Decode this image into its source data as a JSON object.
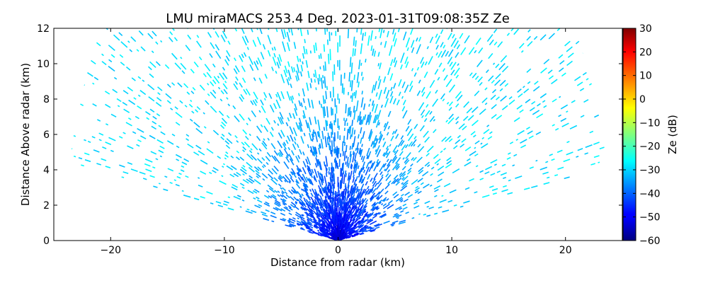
{
  "chart_data": {
    "type": "heatmap",
    "subtype": "radar-rhi-scan",
    "title": "LMU miraMACS 253.4 Deg. 2023-01-31T09:08:35Z  Ze",
    "xlabel": "Distance from radar (km)",
    "ylabel": "Distance Above radar  (km)",
    "xlim": [
      -25,
      25
    ],
    "ylim": [
      0,
      12
    ],
    "xticks": [
      "−20",
      "−10",
      "0",
      "10",
      "20"
    ],
    "xtick_values": [
      -20,
      -10,
      0,
      10,
      20
    ],
    "yticks": [
      "0",
      "2",
      "4",
      "6",
      "8",
      "10",
      "12"
    ],
    "ytick_values": [
      0,
      2,
      4,
      6,
      8,
      10,
      12
    ],
    "colorbar": {
      "label": "Ze (dB)",
      "range": [
        -60,
        30
      ],
      "colormap": "jet",
      "ticks": [
        "−60",
        "−50",
        "−40",
        "−30",
        "−20",
        "−10",
        "0",
        "10",
        "20",
        "30"
      ],
      "tick_values": [
        -60,
        -50,
        -40,
        -30,
        -20,
        -10,
        0,
        10,
        20,
        30
      ]
    },
    "scan_range_km": 24,
    "elevation_range_deg": [
      10,
      170
    ],
    "reflectivity_near_radar_db": -55,
    "reflectivity_far_range_db": -29
  }
}
